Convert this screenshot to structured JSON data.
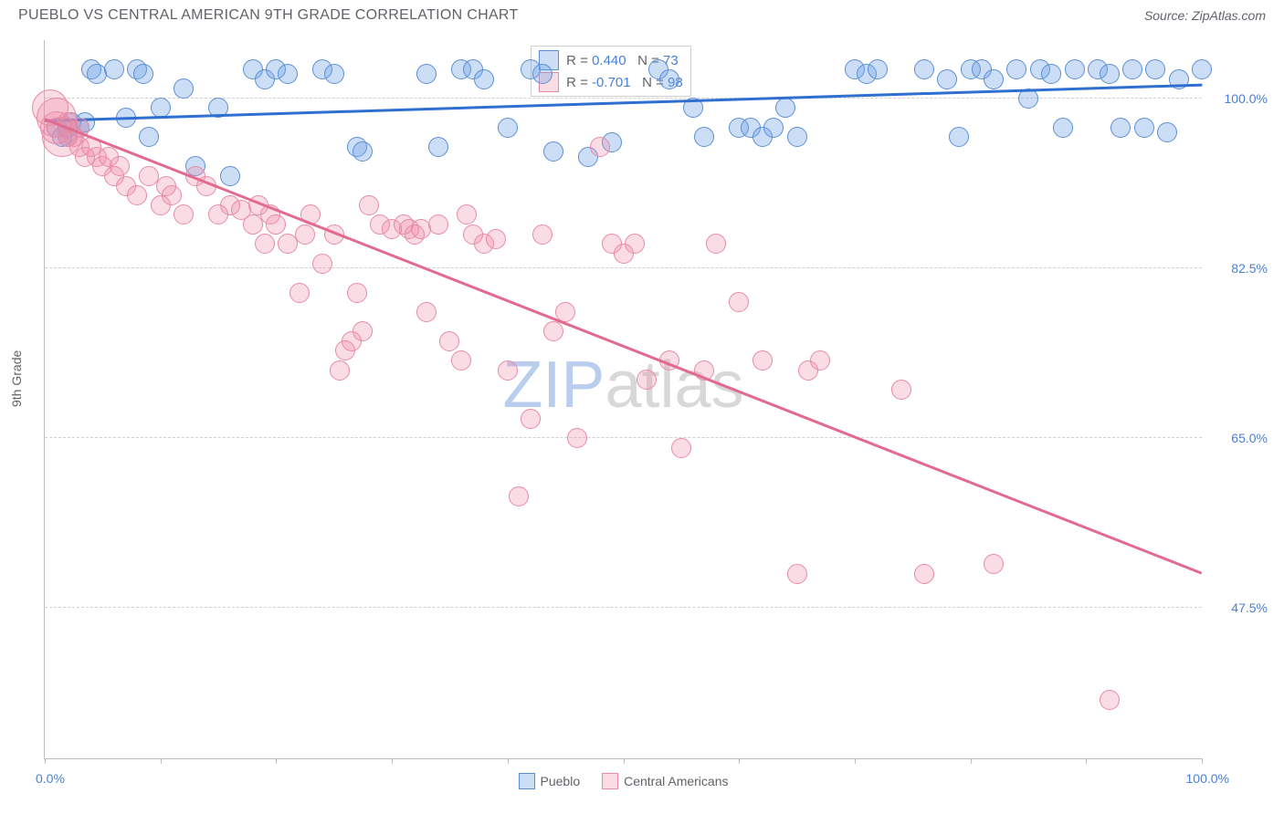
{
  "title": "PUEBLO VS CENTRAL AMERICAN 9TH GRADE CORRELATION CHART",
  "source": "Source: ZipAtlas.com",
  "ylabel": "9th Grade",
  "x_axis": {
    "min_label": "0.0%",
    "max_label": "100.0%",
    "min": 0,
    "max": 100,
    "ticks": [
      0,
      10,
      20,
      30,
      40,
      50,
      60,
      70,
      80,
      90,
      100
    ]
  },
  "y_axis": {
    "min": 32,
    "max": 106,
    "gridlines": [
      {
        "v": 100.0,
        "label": "100.0%"
      },
      {
        "v": 82.5,
        "label": "82.5%"
      },
      {
        "v": 65.0,
        "label": "65.0%"
      },
      {
        "v": 47.5,
        "label": "47.5%"
      }
    ]
  },
  "colors": {
    "blue_fill": "rgba(110,160,230,0.35)",
    "blue_stroke": "#5b8fd6",
    "blue_line": "#2f6fd0",
    "pink_fill": "rgba(240,140,165,0.30)",
    "pink_stroke": "#e98aa5",
    "pink_line": "#e26a8f",
    "grid": "#d0d0d0",
    "axis": "#bdbdbd",
    "tick_text": "#4a7fd8",
    "label_text": "#5f6368",
    "watermark_zip": "#b9cdee",
    "watermark_atlas": "#d8d8d8"
  },
  "marker_radius": 11,
  "series": [
    {
      "name": "Pueblo",
      "color_fill_key": "blue_fill",
      "color_stroke_key": "blue_stroke",
      "trend": {
        "y_at_x0": 97.6,
        "y_at_x100": 101.3,
        "color_key": "blue_line"
      },
      "legend": {
        "R_label": "R =",
        "R": "0.440",
        "N_label": "N =",
        "N": "73"
      },
      "points": [
        [
          1,
          97
        ],
        [
          1.5,
          96
        ],
        [
          2,
          96
        ],
        [
          2,
          97
        ],
        [
          2.3,
          97.5
        ],
        [
          3,
          97
        ],
        [
          3.5,
          97.5
        ],
        [
          4,
          103
        ],
        [
          4.5,
          102.5
        ],
        [
          6,
          103
        ],
        [
          7,
          98
        ],
        [
          8,
          103
        ],
        [
          8.5,
          102.5
        ],
        [
          9,
          96
        ],
        [
          10,
          99
        ],
        [
          12,
          101
        ],
        [
          13,
          93
        ],
        [
          15,
          99
        ],
        [
          16,
          92
        ],
        [
          18,
          103
        ],
        [
          19,
          102
        ],
        [
          20,
          103
        ],
        [
          21,
          102.5
        ],
        [
          24,
          103
        ],
        [
          25,
          102.5
        ],
        [
          27,
          95
        ],
        [
          27.5,
          94.5
        ],
        [
          33,
          102.5
        ],
        [
          34,
          95
        ],
        [
          36,
          103
        ],
        [
          37,
          103
        ],
        [
          38,
          102
        ],
        [
          40,
          97
        ],
        [
          42,
          103
        ],
        [
          43,
          102.5
        ],
        [
          44,
          94.5
        ],
        [
          47,
          94
        ],
        [
          49,
          95.5
        ],
        [
          53,
          103
        ],
        [
          54,
          102
        ],
        [
          56,
          99
        ],
        [
          57,
          96
        ],
        [
          60,
          97
        ],
        [
          61,
          97
        ],
        [
          62,
          96
        ],
        [
          63,
          97
        ],
        [
          64,
          99
        ],
        [
          65,
          96
        ],
        [
          70,
          103
        ],
        [
          71,
          102.5
        ],
        [
          72,
          103
        ],
        [
          76,
          103
        ],
        [
          78,
          102
        ],
        [
          79,
          96
        ],
        [
          80,
          103
        ],
        [
          81,
          103
        ],
        [
          82,
          102
        ],
        [
          84,
          103
        ],
        [
          85,
          100
        ],
        [
          86,
          103
        ],
        [
          87,
          102.5
        ],
        [
          88,
          97
        ],
        [
          89,
          103
        ],
        [
          91,
          103
        ],
        [
          92,
          102.5
        ],
        [
          93,
          97
        ],
        [
          94,
          103
        ],
        [
          95,
          97
        ],
        [
          96,
          103
        ],
        [
          97,
          96.5
        ],
        [
          98,
          102
        ],
        [
          100,
          103
        ]
      ]
    },
    {
      "name": "Central Americans",
      "color_fill_key": "pink_fill",
      "color_stroke_key": "pink_stroke",
      "trend": {
        "y_at_x0": 97.8,
        "y_at_x100": 51.0,
        "color_key": "pink_line"
      },
      "legend": {
        "R_label": "R =",
        "R": "-0.701",
        "N_label": "N =",
        "N": "98"
      },
      "points": [
        [
          0.5,
          99,
          20
        ],
        [
          1,
          98,
          22
        ],
        [
          1,
          97,
          18
        ],
        [
          1.5,
          96,
          22
        ],
        [
          2,
          96
        ],
        [
          2,
          97.5
        ],
        [
          2.5,
          96
        ],
        [
          3,
          95
        ],
        [
          3,
          97
        ],
        [
          3.5,
          94
        ],
        [
          4,
          95
        ],
        [
          4.5,
          94
        ],
        [
          5,
          93
        ],
        [
          5.5,
          94
        ],
        [
          6,
          92
        ],
        [
          6.5,
          93
        ],
        [
          7,
          91
        ],
        [
          8,
          90
        ],
        [
          9,
          92
        ],
        [
          10,
          89
        ],
        [
          10.5,
          91
        ],
        [
          11,
          90
        ],
        [
          12,
          88
        ],
        [
          13,
          92
        ],
        [
          14,
          91
        ],
        [
          15,
          88
        ],
        [
          16,
          89
        ],
        [
          17,
          88.5
        ],
        [
          18,
          87
        ],
        [
          18.5,
          89
        ],
        [
          19,
          85
        ],
        [
          19.5,
          88
        ],
        [
          20,
          87
        ],
        [
          21,
          85
        ],
        [
          22,
          80
        ],
        [
          22.5,
          86
        ],
        [
          23,
          88
        ],
        [
          24,
          83
        ],
        [
          25,
          86
        ],
        [
          25.5,
          72
        ],
        [
          26,
          74
        ],
        [
          26.5,
          75
        ],
        [
          27,
          80
        ],
        [
          27.5,
          76
        ],
        [
          28,
          89
        ],
        [
          29,
          87
        ],
        [
          30,
          86.5
        ],
        [
          31,
          87
        ],
        [
          31.5,
          86.5
        ],
        [
          32,
          86
        ],
        [
          32.5,
          86.5
        ],
        [
          33,
          78
        ],
        [
          34,
          87
        ],
        [
          35,
          75
        ],
        [
          36,
          73
        ],
        [
          36.5,
          88
        ],
        [
          37,
          86
        ],
        [
          38,
          85
        ],
        [
          39,
          85.5
        ],
        [
          40,
          72
        ],
        [
          41,
          59
        ],
        [
          42,
          67
        ],
        [
          43,
          86
        ],
        [
          44,
          76
        ],
        [
          45,
          78
        ],
        [
          46,
          65
        ],
        [
          48,
          95
        ],
        [
          49,
          85
        ],
        [
          50,
          84
        ],
        [
          51,
          85
        ],
        [
          52,
          71
        ],
        [
          54,
          73
        ],
        [
          55,
          64
        ],
        [
          57,
          72
        ],
        [
          58,
          85
        ],
        [
          60,
          79
        ],
        [
          62,
          73
        ],
        [
          65,
          51
        ],
        [
          66,
          72
        ],
        [
          67,
          73
        ],
        [
          74,
          70
        ],
        [
          76,
          51
        ],
        [
          82,
          52
        ],
        [
          92,
          38
        ]
      ]
    }
  ],
  "bottom_legend": [
    {
      "label": "Pueblo",
      "fill_key": "blue_fill",
      "stroke_key": "blue_stroke"
    },
    {
      "label": "Central Americans",
      "fill_key": "pink_fill",
      "stroke_key": "pink_stroke"
    }
  ],
  "watermark": {
    "part1": "ZIP",
    "part2": "atlas"
  }
}
